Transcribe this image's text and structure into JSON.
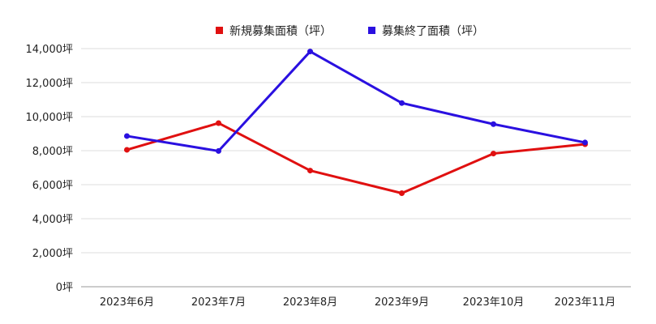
{
  "chart_data": {
    "type": "line",
    "categories": [
      "2023年6月",
      "2023年7月",
      "2023年8月",
      "2023年9月",
      "2023年10月",
      "2023年11月"
    ],
    "series": [
      {
        "name": "新規募集面積（坪）",
        "color": "#e01010",
        "values": [
          8050,
          9620,
          6830,
          5500,
          7830,
          8380
        ]
      },
      {
        "name": "募集終了面積（坪）",
        "color": "#2a10e0",
        "values": [
          8860,
          7980,
          13830,
          10800,
          9560,
          8480
        ]
      }
    ],
    "ylim": [
      0,
      14000
    ],
    "y_ticks": [
      "0坪",
      "2,000坪",
      "4,000坪",
      "6,000坪",
      "8,000坪",
      "10,000坪",
      "12,000坪",
      "14,000坪"
    ],
    "y_tick_values": [
      0,
      2000,
      4000,
      6000,
      8000,
      10000,
      12000,
      14000
    ],
    "grid": true,
    "legend_position": "top-center",
    "title": "",
    "xlabel": "",
    "ylabel": ""
  }
}
